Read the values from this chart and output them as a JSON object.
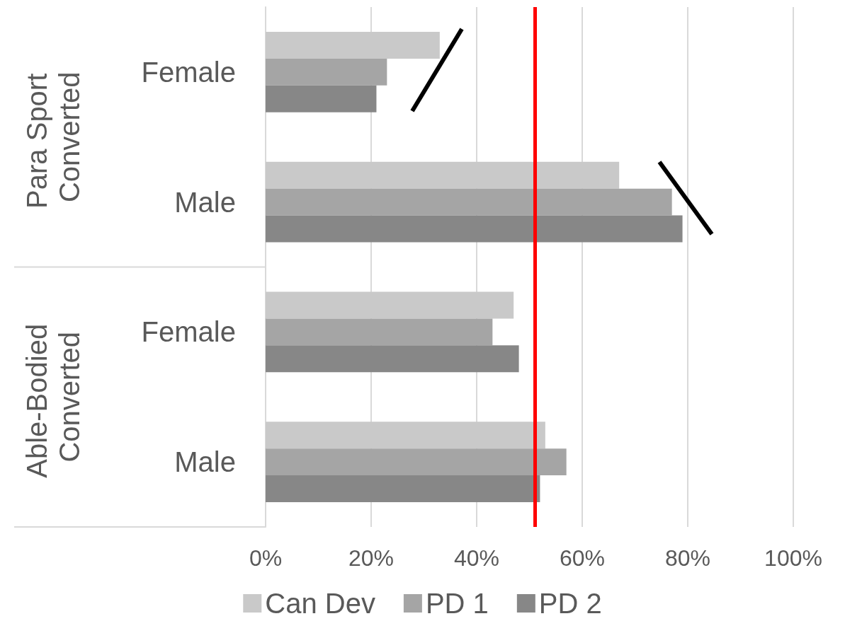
{
  "chart_data": {
    "type": "bar",
    "orientation": "horizontal",
    "categories": [
      "Female",
      "Male",
      "Female",
      "Male"
    ],
    "series": [
      {
        "name": "Can Dev",
        "color": "#c9c9c9",
        "values": [
          33,
          67,
          47,
          53
        ]
      },
      {
        "name": "PD 1",
        "color": "#a5a5a5",
        "values": [
          23,
          77,
          43,
          57
        ]
      },
      {
        "name": "PD 2",
        "color": "#878787",
        "values": [
          21,
          79,
          48,
          52
        ]
      }
    ],
    "xlim": [
      0,
      100
    ],
    "xticks": [
      {
        "value": 0,
        "label": "0%"
      },
      {
        "value": 20,
        "label": "20%"
      },
      {
        "value": 40,
        "label": "40%"
      },
      {
        "value": 60,
        "label": "60%"
      },
      {
        "value": 80,
        "label": "80%"
      },
      {
        "value": 100,
        "label": "100%"
      }
    ],
    "annotations": [
      "Para Sport Converted",
      "Able-Bodied Converted"
    ],
    "ref_lines": [
      {
        "axis": "x",
        "value": 51,
        "color": "#ff0000"
      }
    ],
    "grid": "x",
    "legend": "bottom"
  }
}
